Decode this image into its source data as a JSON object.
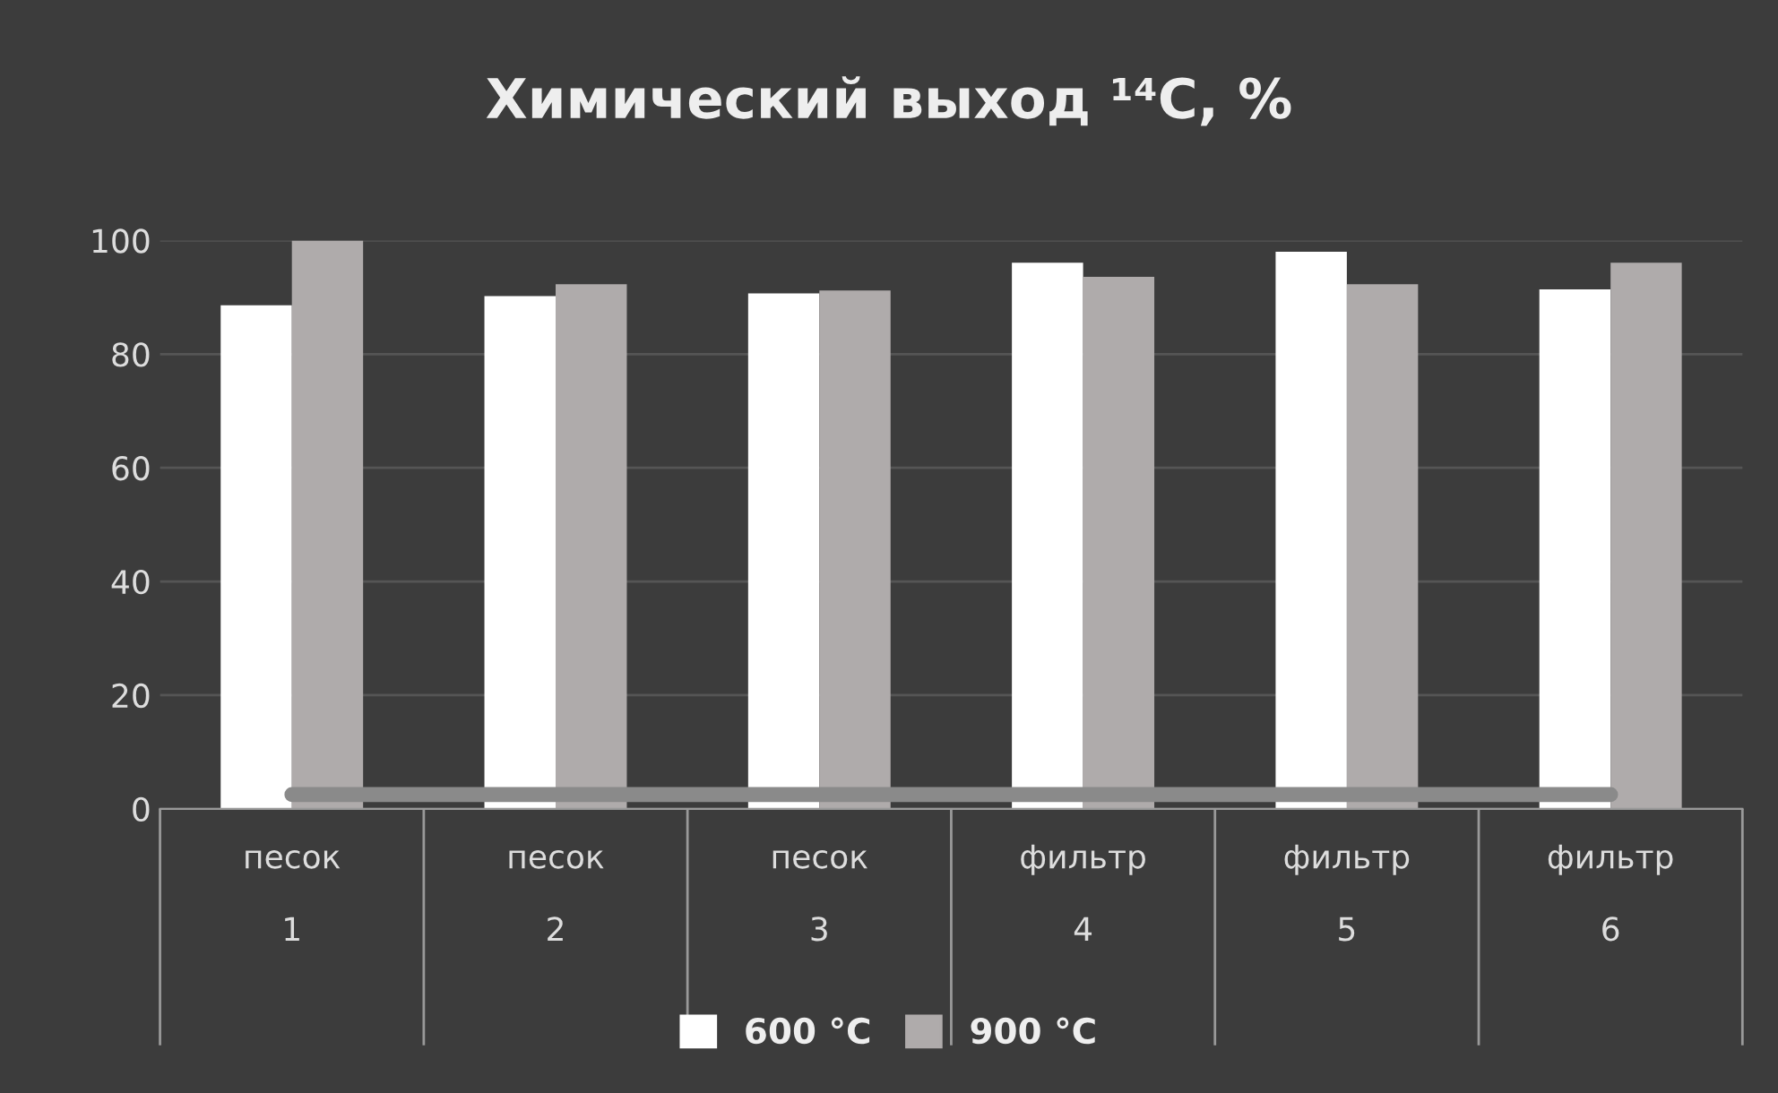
{
  "chart_data": {
    "type": "bar",
    "title": "Химический выход ¹⁴C, %",
    "categories": [
      "песок\n\n1",
      "песок\n\n2",
      "песок\n\n3",
      "фильтр\n\n4",
      "фильтр\n\n5",
      "фильтр\n\n6"
    ],
    "series": [
      {
        "name": "600 °C",
        "color": "#ffffff",
        "values": [
          88.6,
          90.2,
          90.7,
          96.1,
          98.0,
          91.4
        ]
      },
      {
        "name": "900 °C",
        "color": "#afabab",
        "values": [
          100,
          92.3,
          91.2,
          93.6,
          92.3,
          96.1
        ]
      },
      {
        "type": "line",
        "color": "#8a8a8a",
        "values": [
          2.5,
          2.5,
          2.5,
          2.5,
          2.5,
          2.5
        ]
      }
    ],
    "ylim": [
      0,
      100
    ],
    "yticks": [
      0,
      20,
      40,
      60,
      80,
      100
    ],
    "grid": "y",
    "legend": "bottom"
  }
}
